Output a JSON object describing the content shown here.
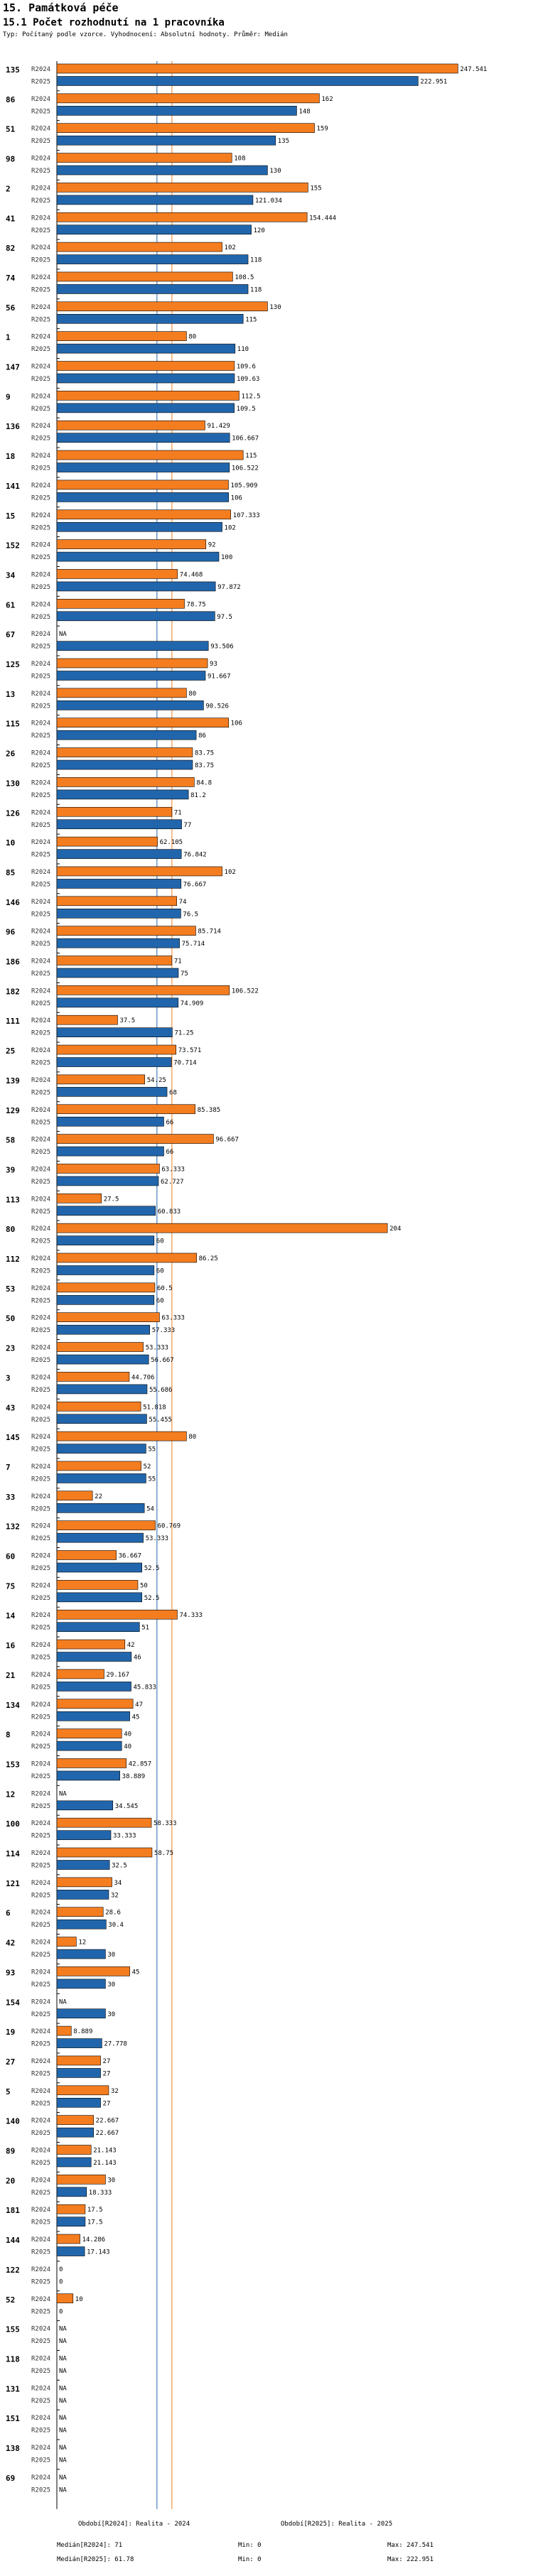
{
  "header": {
    "title": "15. Památková péče",
    "subtitle": "15.1 Počet rozhodnutí na 1 pracovníka",
    "description": "Typ: Počítaný podle vzorce. Vyhodnocení: Absolutní hodnoty. Průměr: Medián"
  },
  "colors": {
    "r2024": "#f47d20",
    "r2025": "#2166ac",
    "median2024": "#f47d20",
    "median2025": "#2166ac"
  },
  "series_labels": [
    "R2024",
    "R2025"
  ],
  "na_label": "NA",
  "chart_data": {
    "type": "bar",
    "orientation": "horizontal",
    "title": "15.1 Počet rozhodnutí na 1 pracovníka",
    "xlim": [
      0,
      250
    ],
    "categories": [
      "135",
      "86",
      "51",
      "98",
      "2",
      "41",
      "82",
      "74",
      "56",
      "1",
      "147",
      "9",
      "136",
      "18",
      "141",
      "15",
      "152",
      "34",
      "61",
      "67",
      "125",
      "13",
      "115",
      "26",
      "130",
      "126",
      "10",
      "85",
      "146",
      "96",
      "186",
      "182",
      "111",
      "25",
      "139",
      "129",
      "58",
      "39",
      "113",
      "80",
      "112",
      "53",
      "50",
      "23",
      "3",
      "43",
      "145",
      "7",
      "33",
      "132",
      "60",
      "75",
      "14",
      "16",
      "21",
      "134",
      "8",
      "153",
      "12",
      "100",
      "114",
      "121",
      "6",
      "42",
      "93",
      "154",
      "19",
      "27",
      "5",
      "140",
      "89",
      "20",
      "181",
      "144",
      "122",
      "52",
      "155",
      "118",
      "131",
      "151",
      "138",
      "69"
    ],
    "series": [
      {
        "name": "R2024",
        "values": [
          247.541,
          162,
          159,
          108,
          155,
          154.444,
          102,
          108.5,
          130,
          80,
          109.6,
          112.5,
          91.429,
          115,
          105.909,
          107.333,
          92,
          74.468,
          78.75,
          null,
          93,
          80,
          106,
          83.75,
          84.8,
          71,
          62.105,
          102,
          74,
          85.714,
          71,
          106.522,
          37.5,
          73.571,
          54.25,
          85.385,
          96.667,
          63.333,
          27.5,
          204,
          86.25,
          60.5,
          63.333,
          53.333,
          44.706,
          51.818,
          80,
          52,
          22,
          60.769,
          36.667,
          50,
          74.333,
          42,
          29.167,
          47,
          40,
          42.857,
          null,
          58.333,
          58.75,
          34,
          28.6,
          12,
          45,
          null,
          8.889,
          27,
          32,
          22.667,
          21.143,
          30,
          17.5,
          14.286,
          0,
          10,
          null,
          null,
          null,
          null,
          null,
          null
        ]
      },
      {
        "name": "R2025",
        "values": [
          222.951,
          148,
          135,
          130,
          121.034,
          120,
          118,
          118,
          115,
          110,
          109.63,
          109.5,
          106.667,
          106.522,
          106,
          102,
          100,
          97.872,
          97.5,
          93.506,
          91.667,
          90.526,
          86,
          83.75,
          81.2,
          77,
          76.842,
          76.667,
          76.5,
          75.714,
          75,
          74.909,
          71.25,
          70.714,
          68,
          66,
          66,
          62.727,
          60.833,
          60,
          60,
          60,
          57.333,
          56.667,
          55.686,
          55.455,
          55,
          55,
          54,
          53.333,
          52.5,
          52.5,
          51,
          46,
          45.833,
          45,
          40,
          38.889,
          34.545,
          33.333,
          32.5,
          32,
          30.4,
          30,
          30,
          30,
          27.778,
          27,
          27,
          22.667,
          21.143,
          18.333,
          17.5,
          17.143,
          0,
          0,
          null,
          null,
          null,
          null,
          null,
          null
        ]
      }
    ],
    "medians": {
      "R2024": 71,
      "R2025": 61.78
    },
    "footer": {
      "legend_2024": "Období[R2024]: Realita - 2024",
      "legend_2025": "Období[R2025]: Realita - 2025",
      "median_2024": "Medián[R2024]: 71",
      "median_2025": "Medián[R2025]: 61.78",
      "min_2024": "Min: 0",
      "min_2025": "Min: 0",
      "max_2024": "Max: 247.541",
      "max_2025": "Max: 222.951"
    }
  }
}
